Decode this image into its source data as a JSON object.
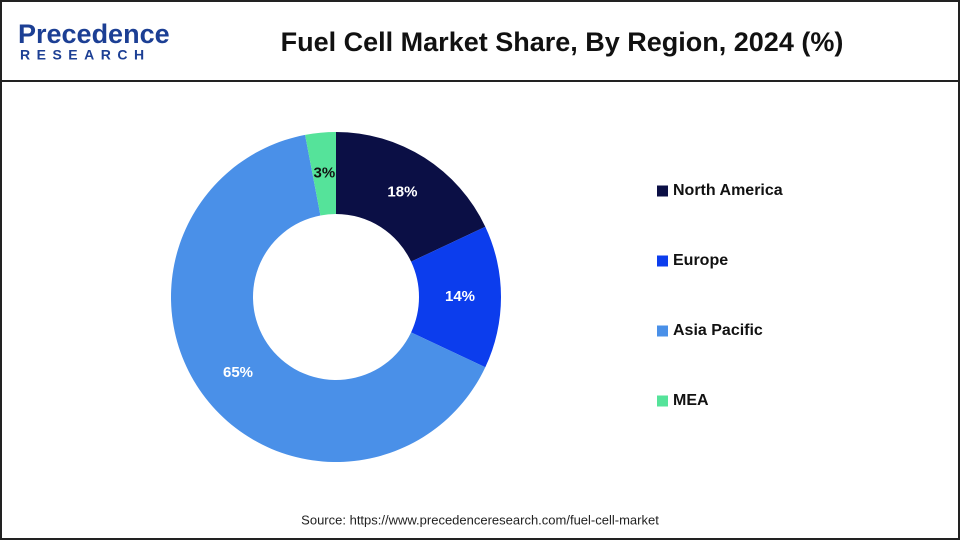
{
  "logo": {
    "name": "Precedence",
    "tagline": "RESEARCH"
  },
  "chart_data": {
    "type": "donut",
    "title": "Fuel Cell Market Share, By Region, 2024 (%)",
    "categories": [
      "North America",
      "Europe",
      "Asia Pacific",
      "MEA"
    ],
    "values": [
      18,
      14,
      65,
      3
    ],
    "value_labels": [
      "18%",
      "14%",
      "65%",
      "3%"
    ],
    "colors": [
      "#0b0f45",
      "#0c3ded",
      "#4a90e8",
      "#55e39a"
    ],
    "legend": "right",
    "source": "Source: https://www.precedenceresearch.com/fuel-cell-market"
  }
}
